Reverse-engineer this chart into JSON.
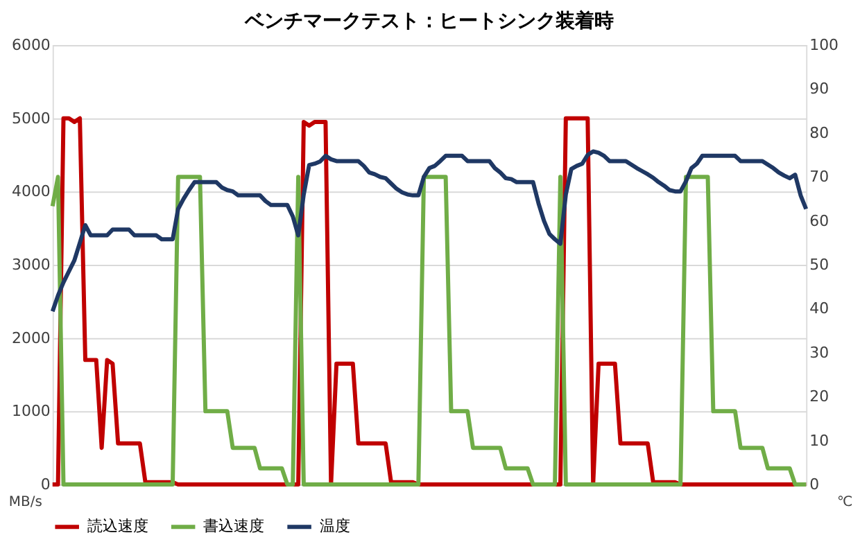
{
  "chart_data": {
    "type": "line",
    "title": "ベンチマークテスト：ヒートシンク装着時",
    "categories": [
      null,
      null,
      null,
      null,
      null,
      null,
      null,
      null,
      null,
      null,
      null,
      null,
      null,
      null,
      null,
      null,
      null,
      null,
      null,
      null,
      null,
      null,
      null,
      null,
      null,
      null,
      null,
      null,
      null,
      null,
      null,
      null,
      null,
      null,
      null,
      null,
      null,
      null,
      null,
      null,
      null,
      null,
      null,
      null,
      null,
      null,
      null,
      null,
      null,
      null,
      null,
      null,
      null,
      null,
      null,
      null,
      null,
      null,
      null,
      null,
      null,
      null,
      null,
      null,
      null,
      null,
      null,
      null,
      null,
      null,
      null,
      null,
      null,
      null,
      null,
      null,
      null,
      null,
      null,
      null,
      null,
      null,
      null,
      null,
      null,
      null,
      null,
      null,
      null,
      null,
      null,
      null,
      null,
      null,
      null,
      null,
      null,
      null,
      null,
      null,
      null,
      null,
      null,
      null,
      null,
      null,
      null,
      null,
      null,
      null,
      null,
      null,
      null,
      null,
      null,
      null,
      null,
      null,
      null,
      null,
      null,
      null,
      null,
      null,
      null,
      null,
      null,
      null,
      null,
      null,
      null,
      null,
      null,
      null,
      null,
      null,
      null,
      null,
      null
    ],
    "series": [
      {
        "name": "読込速度",
        "color": "#c00000",
        "values": [
          0,
          0,
          5000,
          5000,
          4950,
          5000,
          1700,
          1700,
          1700,
          500,
          1700,
          1650,
          560,
          560,
          560,
          560,
          560,
          30,
          30,
          30,
          30,
          30,
          30,
          0,
          0,
          0,
          0,
          0,
          0,
          0,
          0,
          0,
          0,
          0,
          0,
          0,
          0,
          0,
          0,
          0,
          0,
          0,
          0,
          0,
          0,
          0,
          4950,
          4900,
          4950,
          4950,
          4950,
          0,
          1650,
          1650,
          1650,
          1650,
          560,
          560,
          560,
          560,
          560,
          560,
          30,
          30,
          30,
          30,
          30,
          0,
          0,
          0,
          0,
          0,
          0,
          0,
          0,
          0,
          0,
          0,
          0,
          0,
          0,
          0,
          0,
          0,
          0,
          0,
          0,
          0,
          0,
          0,
          0,
          0,
          0,
          0,
          5000,
          5000,
          5000,
          5000,
          5000,
          0,
          1650,
          1650,
          1650,
          1650,
          560,
          560,
          560,
          560,
          560,
          560,
          30,
          30,
          30,
          30,
          30,
          0,
          0,
          0,
          0,
          0,
          0,
          0,
          0,
          0,
          0,
          0,
          0,
          0,
          0,
          0,
          0,
          0,
          0,
          0,
          0,
          0,
          0,
          0,
          0
        ]
      },
      {
        "name": "書込速度",
        "color": "#70ad47",
        "values": [
          3800,
          4200,
          0,
          0,
          0,
          0,
          0,
          0,
          0,
          0,
          0,
          0,
          0,
          0,
          0,
          0,
          0,
          0,
          0,
          0,
          0,
          0,
          0,
          4200,
          4200,
          4200,
          4200,
          4200,
          1000,
          1000,
          1000,
          1000,
          1000,
          500,
          500,
          500,
          500,
          500,
          220,
          220,
          220,
          220,
          220,
          0,
          0,
          4200,
          0,
          0,
          0,
          0,
          0,
          0,
          0,
          0,
          0,
          0,
          0,
          0,
          0,
          0,
          0,
          0,
          0,
          0,
          0,
          0,
          0,
          0,
          4200,
          4200,
          4200,
          4200,
          4200,
          1000,
          1000,
          1000,
          1000,
          500,
          500,
          500,
          500,
          500,
          500,
          220,
          220,
          220,
          220,
          220,
          0,
          0,
          0,
          0,
          0,
          4200,
          0,
          0,
          0,
          0,
          0,
          0,
          0,
          0,
          0,
          0,
          0,
          0,
          0,
          0,
          0,
          0,
          0,
          0,
          0,
          0,
          0,
          0,
          4200,
          4200,
          4200,
          4200,
          4200,
          1000,
          1000,
          1000,
          1000,
          1000,
          500,
          500,
          500,
          500,
          500,
          220,
          220,
          220,
          220,
          220,
          0,
          0,
          0
        ]
      },
      {
        "name": "温度",
        "color": "#1f3864",
        "axis": "y2",
        "values": [
          39.4,
          43,
          46,
          48.5,
          51,
          55,
          59,
          56.7,
          56.7,
          56.7,
          56.7,
          58,
          58,
          58,
          58,
          56.7,
          56.7,
          56.7,
          56.7,
          56.7,
          55.8,
          55.8,
          55.8,
          62.7,
          65,
          67,
          68.8,
          68.8,
          68.8,
          68.8,
          68.8,
          67.6,
          67,
          66.7,
          65.8,
          65.8,
          65.8,
          65.8,
          65.8,
          64.5,
          63.6,
          63.6,
          63.6,
          63.6,
          61,
          56.7,
          66,
          72.7,
          73,
          73.5,
          74.8,
          74,
          73.6,
          73.6,
          73.6,
          73.6,
          73.6,
          72.5,
          71,
          70.6,
          70,
          69.7,
          68.5,
          67.3,
          66.5,
          66,
          65.8,
          65.8,
          70,
          72,
          72.5,
          73.6,
          74.8,
          74.8,
          74.8,
          74.8,
          73.6,
          73.6,
          73.6,
          73.6,
          73.6,
          72,
          71,
          69.7,
          69.5,
          68.8,
          68.8,
          68.8,
          68.8,
          64,
          60,
          57,
          55.8,
          54.8,
          66,
          71.8,
          72.5,
          73,
          75,
          75.8,
          75.5,
          74.8,
          73.6,
          73.6,
          73.6,
          73.6,
          72.8,
          72,
          71.3,
          70.6,
          69.8,
          68.8,
          68,
          67,
          66.7,
          66.7,
          69,
          72,
          73,
          74.8,
          74.8,
          74.8,
          74.8,
          74.8,
          74.8,
          74.8,
          73.6,
          73.6,
          73.6,
          73.6,
          73.6,
          72.8,
          72,
          71,
          70.3,
          69.7,
          70.5,
          65.8,
          62.7
        ]
      }
    ],
    "ylabel": "MB/s",
    "y2label": "℃",
    "ylim": [
      0,
      6000
    ],
    "yticks": [
      0,
      1000,
      2000,
      3000,
      4000,
      5000,
      6000
    ],
    "y2lim": [
      0,
      100
    ],
    "y2ticks": [
      0,
      10,
      20,
      30,
      40,
      50,
      60,
      70,
      80,
      90,
      100
    ],
    "grid": "y",
    "legend": "bottom",
    "line_style": "solid",
    "marker": "none"
  }
}
